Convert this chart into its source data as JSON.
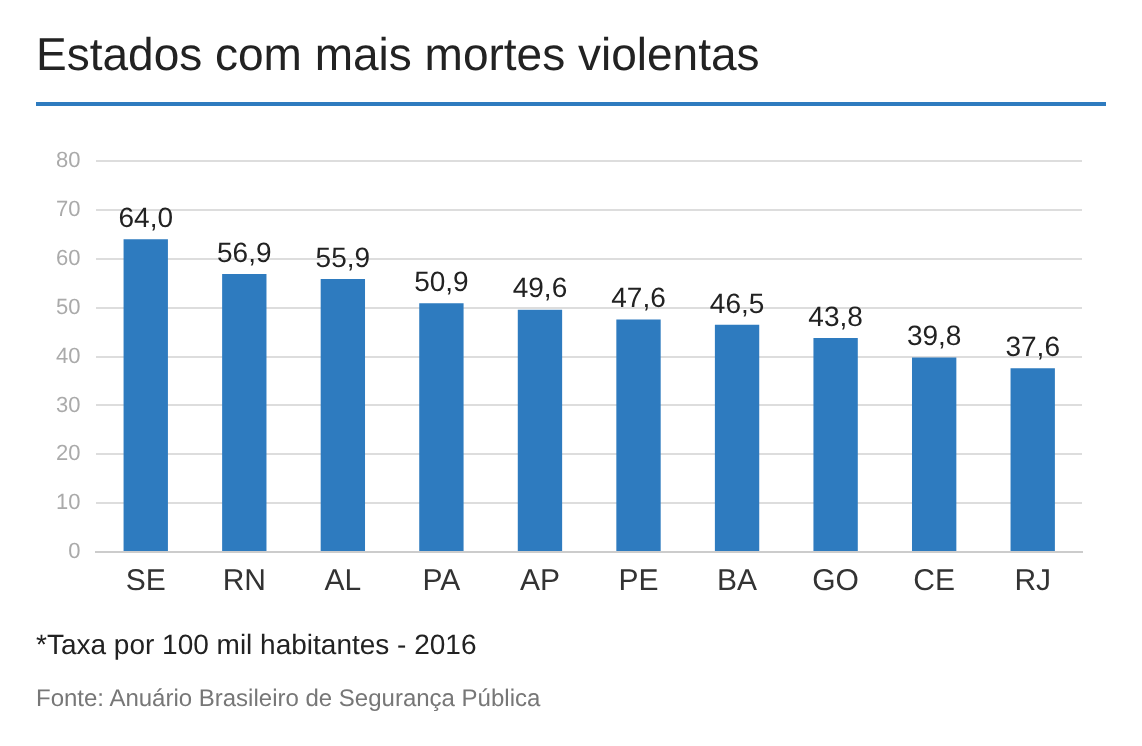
{
  "chart_data": {
    "type": "bar",
    "title": "Estados com mais mortes violentas",
    "categories": [
      "SE",
      "RN",
      "AL",
      "PA",
      "AP",
      "PE",
      "BA",
      "GO",
      "CE",
      "RJ"
    ],
    "values": [
      64.0,
      56.9,
      55.9,
      50.9,
      49.6,
      47.6,
      46.5,
      43.8,
      39.8,
      37.6
    ],
    "value_labels": [
      "64,0",
      "56,9",
      "55,9",
      "50,9",
      "49,6",
      "47,6",
      "46,5",
      "43,8",
      "39,8",
      "37,6"
    ],
    "color": "#2e7bbf",
    "ylim": [
      0,
      80
    ],
    "yticks": [
      0,
      10,
      20,
      30,
      40,
      50,
      60,
      70,
      80
    ],
    "grid": "y",
    "annotations": [
      "*Taxa por 100 mil habitantes - 2016",
      "Fonte: Anuário Brasileiro de Segurança Pública"
    ]
  }
}
